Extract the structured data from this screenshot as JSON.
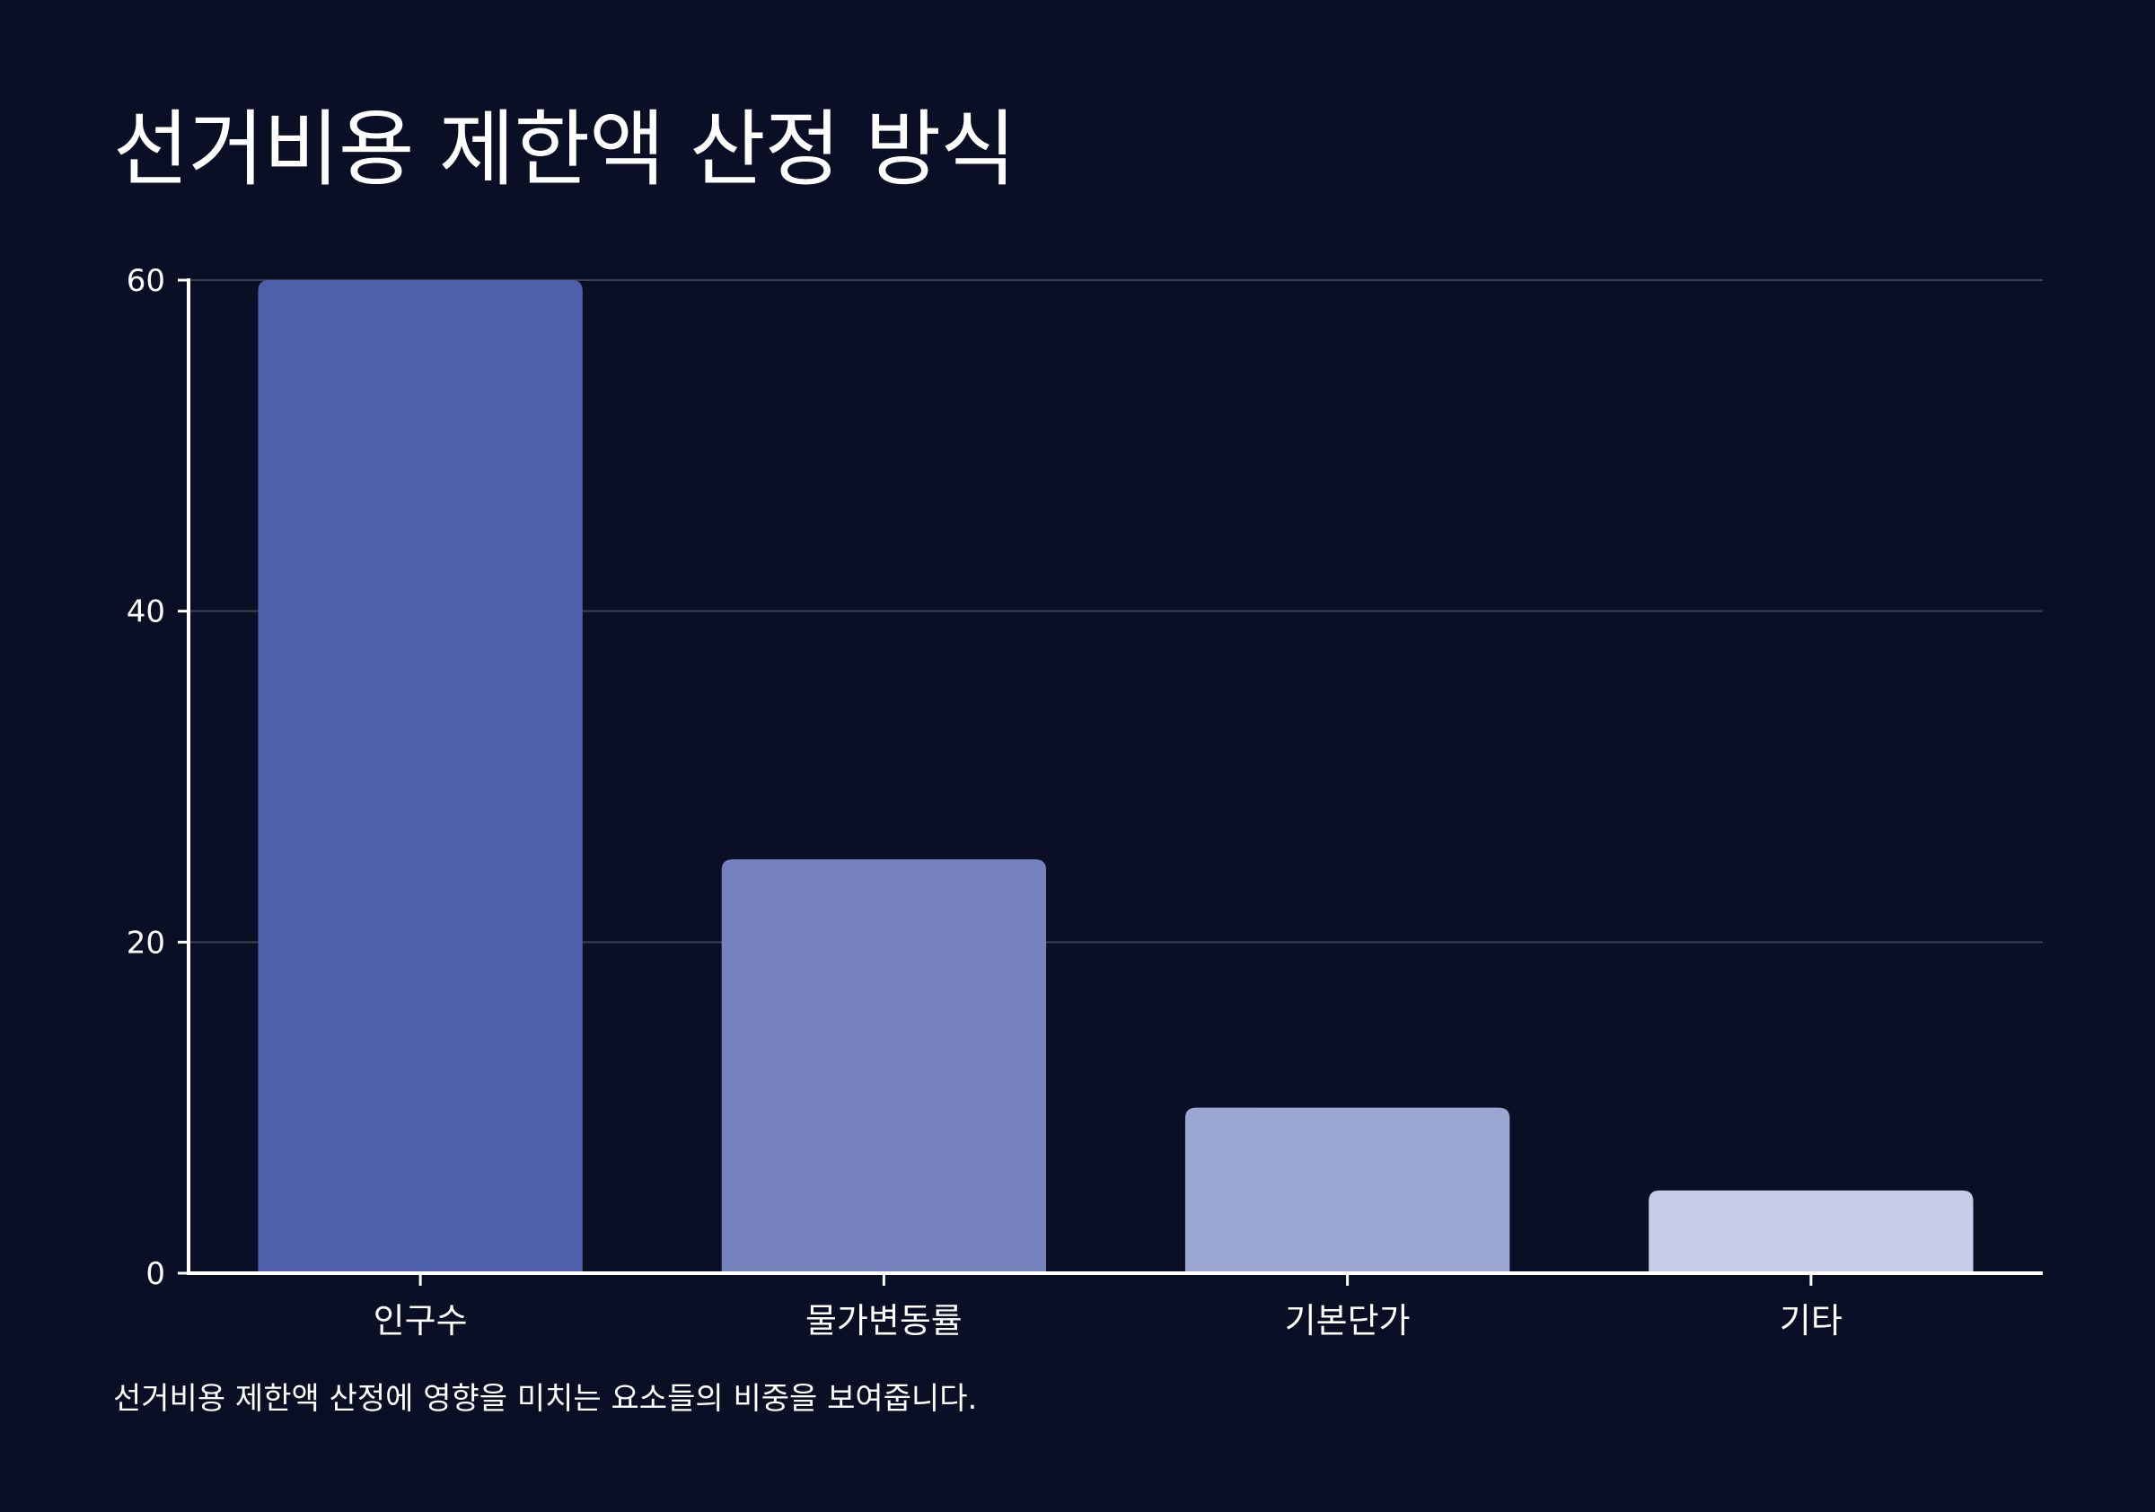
{
  "chart_data": {
    "type": "bar",
    "title": "선거비용 제한액 산정 방식",
    "caption": "선거비용 제한액 산정에 영향을 미치는 요소들의 비중을 보여줍니다.",
    "categories": [
      "인구수",
      "물가변동률",
      "기본단가",
      "기타"
    ],
    "values": [
      60,
      25,
      10,
      5
    ],
    "ylim": [
      0,
      60
    ],
    "yticks": [
      0,
      20,
      40,
      60
    ],
    "grid": true,
    "colors": [
      "#4e60ab",
      "#7582bd",
      "#9ca6d3",
      "#c7cce8"
    ],
    "xlabel": "",
    "ylabel": ""
  }
}
